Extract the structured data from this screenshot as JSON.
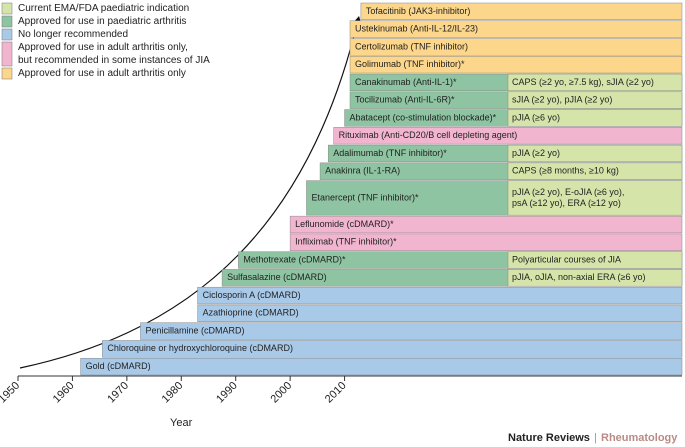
{
  "chart_data": {
    "type": "timeline",
    "xlabel": "Year",
    "xlim": [
      1950,
      2072
    ],
    "xticks": [
      1950,
      1960,
      1970,
      1980,
      1990,
      2000,
      2010
    ],
    "legend": [
      {
        "label": [
          "Current EMA/FDA paediatric indication"
        ],
        "color": "#d5e5aa"
      },
      {
        "label": [
          "Approved for use in paediatric arthritis"
        ],
        "color": "#8ec4a2"
      },
      {
        "label": [
          "No longer recommended"
        ],
        "color": "#a9c9e8"
      },
      {
        "label": [
          "Approved for use in adult arthritis only,",
          "but recommended in some instances of JIA"
        ],
        "color": "#f2b5cf"
      },
      {
        "label": [
          "Approved for use in adult arthritis only"
        ],
        "color": "#fcd68b"
      }
    ],
    "series": [
      {
        "name": "Tofacitinib (JAK3-inhibitor)",
        "start": 2013,
        "color": "#fcd68b"
      },
      {
        "name": "Ustekinumab (Anti-IL-12/IL-23)",
        "start": 2011,
        "color": "#fcd68b"
      },
      {
        "name": "Certolizumab (TNF inhibitor)",
        "start": 2011,
        "color": "#fcd68b"
      },
      {
        "name": "Golimumab (TNF inhibitor)*",
        "start": 2011,
        "color": "#fcd68b"
      },
      {
        "name": "Canakinumab (Anti-IL-1)*",
        "start": 2011,
        "color": "#8ec4a2",
        "indication": [
          "CAPS (≥2 yo, ≥7.5 kg), sJIA (≥2 yo)"
        ]
      },
      {
        "name": "Tocilizumab (Anti-IL-6R)*",
        "start": 2011,
        "color": "#8ec4a2",
        "indication": [
          "sJIA (≥2 yo), pJIA (≥2 yo)"
        ]
      },
      {
        "name": "Abatacept (co-stimulation blockade)*",
        "start": 2010,
        "color": "#8ec4a2",
        "indication": [
          "pJIA (≥6 yo)"
        ]
      },
      {
        "name": "Rituximab (Anti-CD20/B cell depleting agent)",
        "start": 2008,
        "color": "#f2b5cf"
      },
      {
        "name": "Adalimumab (TNF inhibitor)*",
        "start": 2007,
        "color": "#8ec4a2",
        "indication": [
          "pJIA (≥2 yo)"
        ]
      },
      {
        "name": "Anakinra (IL-1-RA)",
        "start": 2005.5,
        "color": "#8ec4a2",
        "indication": [
          "CAPS (≥8 months, ≥10 kg)"
        ]
      },
      {
        "name": "Etanercept (TNF inhibitor)*",
        "start": 2003,
        "color": "#8ec4a2",
        "indication": [
          "pJIA (≥2 yo), E-oJIA (≥6 yo),",
          "psA (≥12 yo), ERA (≥12 yo)"
        ]
      },
      {
        "name": "Leflunomide (cDMARD)*",
        "start": 2000,
        "color": "#f2b5cf"
      },
      {
        "name": "Infliximab (TNF inhibitor)*",
        "start": 2000,
        "color": "#f2b5cf"
      },
      {
        "name": "Methotrexate (cDMARD)*",
        "start": 1990.5,
        "color": "#8ec4a2",
        "indication": [
          "Polyarticular courses of JIA"
        ]
      },
      {
        "name": "Sulfasalazine (cDMARD)",
        "start": 1987.5,
        "color": "#8ec4a2",
        "indication": [
          "pJIA, oJIA, non-axial ERA (≥6 yo)"
        ]
      },
      {
        "name": "Ciclosporin A (cDMARD)",
        "start": 1983,
        "color": "#a9c9e8"
      },
      {
        "name": "Azathioprine (cDMARD)",
        "start": 1983,
        "color": "#a9c9e8"
      },
      {
        "name": "Penicillamine (cDMARD)",
        "start": 1972.5,
        "color": "#a9c9e8"
      },
      {
        "name": "Chloroquine or hydroxychloroquine (cDMARD)",
        "start": 1965.5,
        "color": "#a9c9e8"
      },
      {
        "name": "Gold (cDMARD)",
        "start": 1961.5,
        "color": "#a9c9e8"
      }
    ]
  },
  "footer": {
    "journal": "Nature Reviews",
    "separator": "|",
    "section": "Rheumatology"
  }
}
